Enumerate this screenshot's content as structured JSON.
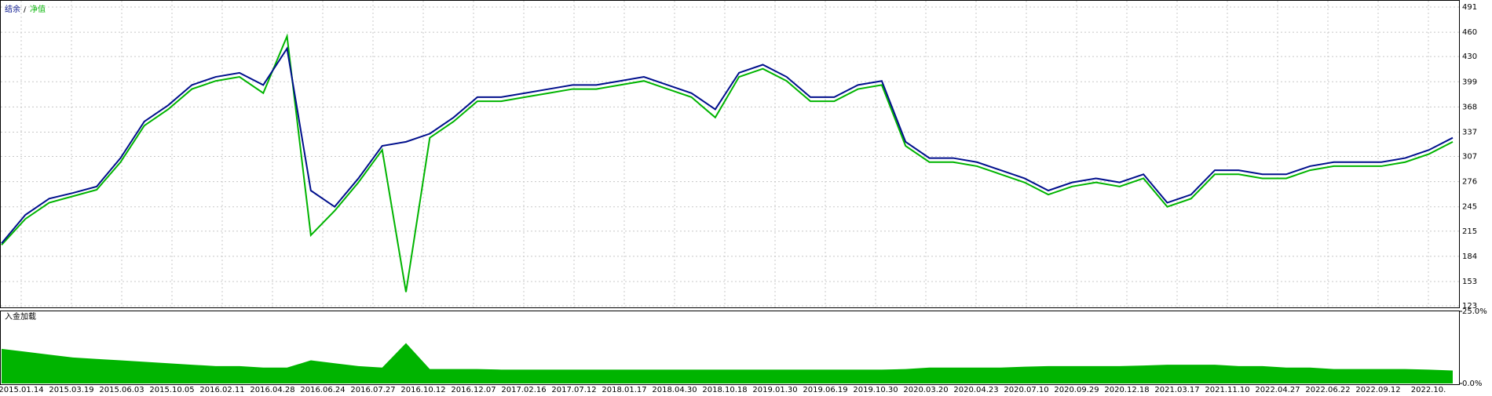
{
  "chart_data": {
    "type": "line",
    "legend": [
      "结余",
      "/",
      "净值"
    ],
    "x_labels": [
      "2015.01.14",
      "2015.03.19",
      "2015.06.03",
      "2015.10.05",
      "2016.02.11",
      "2016.04.28",
      "2016.06.24",
      "2016.07.27",
      "2016.10.12",
      "2016.12.07",
      "2017.02.16",
      "2017.07.12",
      "2018.01.17",
      "2018.04.30",
      "2018.10.18",
      "2019.01.30",
      "2019.06.19",
      "2019.10.30",
      "2020.03.20",
      "2020.04.23",
      "2020.07.10",
      "2020.09.29",
      "2020.12.18",
      "2021.03.17",
      "2021.11.10",
      "2022.04.27",
      "2022.06.22",
      "2022.09.12",
      "2022.10."
    ],
    "series": [
      {
        "name": "结余",
        "color": "#000f8c",
        "values": [
          200,
          235,
          255,
          262,
          270,
          305,
          350,
          370,
          395,
          405,
          410,
          395,
          440,
          265,
          245,
          280,
          320,
          325,
          335,
          355,
          380,
          380,
          385,
          390,
          395,
          395,
          400,
          405,
          395,
          385,
          365,
          410,
          420,
          405,
          380,
          380,
          395,
          400,
          325,
          305,
          305,
          300,
          290,
          280,
          265,
          275,
          280,
          275,
          285,
          250,
          260,
          290,
          290,
          285,
          285,
          295,
          300,
          300,
          300,
          305,
          315,
          330
        ]
      },
      {
        "name": "净值",
        "color": "#00b400",
        "values": [
          198,
          230,
          250,
          258,
          266,
          300,
          345,
          365,
          390,
          400,
          405,
          385,
          455,
          210,
          240,
          275,
          315,
          140,
          330,
          350,
          375,
          375,
          380,
          385,
          390,
          390,
          395,
          400,
          390,
          380,
          355,
          405,
          415,
          400,
          375,
          375,
          390,
          395,
          320,
          300,
          300,
          295,
          285,
          275,
          260,
          270,
          275,
          270,
          280,
          245,
          255,
          285,
          285,
          280,
          280,
          290,
          295,
          295,
          295,
          300,
          310,
          325
        ]
      }
    ],
    "ylim": [
      123,
      491
    ],
    "yticks": [
      123,
      153,
      184,
      215,
      245,
      276,
      307,
      337,
      368,
      399,
      430,
      460,
      491
    ],
    "load": {
      "title": "入金加载",
      "color": "#00b400",
      "values": [
        12,
        11,
        10,
        9,
        8.5,
        8,
        7.5,
        7,
        6.5,
        6,
        6,
        5.5,
        5.5,
        8,
        7,
        6,
        5.5,
        14,
        5,
        5,
        5,
        4.8,
        4.8,
        4.8,
        4.8,
        4.8,
        4.8,
        4.8,
        4.8,
        4.8,
        4.8,
        4.8,
        4.8,
        4.8,
        4.8,
        4.8,
        4.8,
        4.8,
        5,
        5.5,
        5.5,
        5.5,
        5.5,
        5.8,
        6,
        6,
        6,
        6,
        6.2,
        6.5,
        6.5,
        6.5,
        6,
        6,
        5.5,
        5.5,
        5,
        5,
        5,
        5,
        4.8,
        4.5
      ],
      "ylim": [
        0,
        25
      ],
      "yticks": [
        {
          "value": 0,
          "label": "0.0%"
        },
        {
          "value": 25,
          "label": "25.0%"
        }
      ]
    }
  }
}
